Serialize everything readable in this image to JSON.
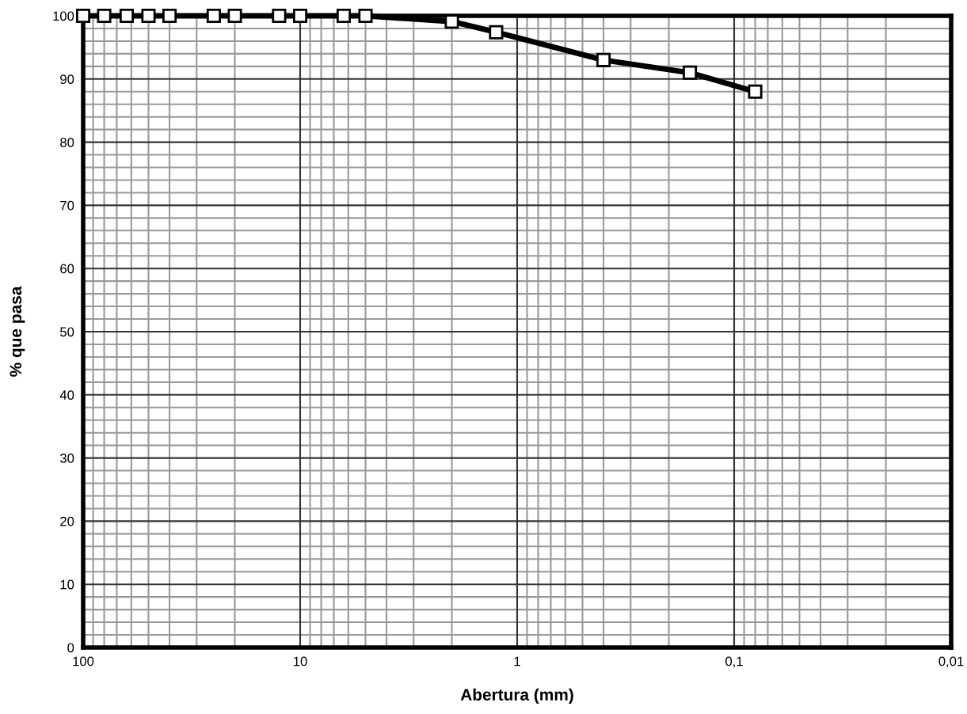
{
  "chart_data": {
    "type": "line",
    "xlabel": "Abertura (mm)",
    "ylabel": "% que pasa",
    "log": "x",
    "x": [
      100,
      80,
      63,
      50,
      40,
      25,
      20,
      12.5,
      10,
      6.3,
      5,
      2,
      1.25,
      0.4,
      0.16,
      0.08
    ],
    "series": [
      {
        "color": "#000000",
        "values": [
          100,
          100,
          100,
          100,
          100,
          100,
          100,
          100,
          100,
          100,
          100,
          99.1,
          97.4,
          93,
          91,
          88
        ]
      }
    ],
    "xlim": [
      100,
      0.01
    ],
    "xticks": [
      100,
      10,
      1,
      {
        "value": 0.1,
        "label": "0,1"
      },
      {
        "value": 0.01,
        "label": "0,01"
      }
    ],
    "ylim": [
      0,
      100
    ],
    "yticks": [
      0,
      10,
      20,
      30,
      40,
      50,
      60,
      70,
      80,
      90,
      100
    ],
    "grid": true,
    "marker": "square",
    "line_style": "solid",
    "legend": false
  }
}
